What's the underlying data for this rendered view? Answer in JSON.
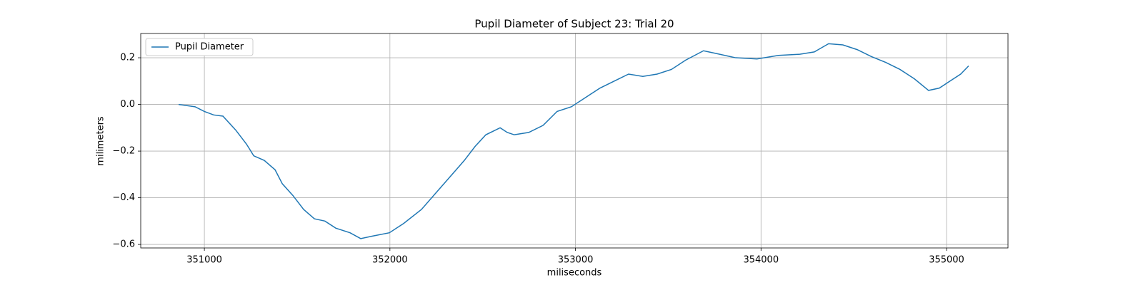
{
  "chart_data": {
    "type": "line",
    "title": "Pupil Diameter of Subject 23: Trial 20",
    "xlabel": "miliseconds",
    "ylabel": "milimeters",
    "x": [
      350861,
      350950,
      351000,
      351050,
      351100,
      351169,
      351227,
      351266,
      351323,
      351381,
      351420,
      351477,
      351535,
      351593,
      351650,
      351708,
      351785,
      351843,
      351901,
      351997,
      352074,
      352170,
      352247,
      352324,
      352401,
      352459,
      352517,
      352594,
      352632,
      352670,
      352748,
      352825,
      352901,
      352978,
      353055,
      353132,
      353209,
      353286,
      353363,
      353440,
      353517,
      353594,
      353690,
      353748,
      353863,
      353978,
      354094,
      354209,
      354287,
      354364,
      354441,
      354518,
      354595,
      354672,
      354749,
      354826,
      354903,
      354961,
      355018,
      355076,
      355119
    ],
    "series": [
      {
        "name": "Pupil Diameter",
        "color": "#1f77b4",
        "values": [
          0.0,
          -0.01,
          -0.03,
          -0.045,
          -0.05,
          -0.11,
          -0.17,
          -0.22,
          -0.24,
          -0.28,
          -0.34,
          -0.39,
          -0.45,
          -0.49,
          -0.5,
          -0.53,
          -0.55,
          -0.575,
          -0.565,
          -0.55,
          -0.51,
          -0.45,
          -0.38,
          -0.31,
          -0.24,
          -0.18,
          -0.13,
          -0.1,
          -0.12,
          -0.13,
          -0.12,
          -0.09,
          -0.03,
          -0.01,
          0.03,
          0.07,
          0.1,
          0.13,
          0.12,
          0.13,
          0.15,
          0.19,
          0.23,
          0.22,
          0.2,
          0.195,
          0.21,
          0.215,
          0.225,
          0.26,
          0.255,
          0.235,
          0.205,
          0.18,
          0.15,
          0.11,
          0.06,
          0.07,
          0.1,
          0.13,
          0.165
        ]
      }
    ],
    "xlim": [
      350657,
      355331
    ],
    "ylim": [
      -0.615,
      0.304
    ],
    "xticks": [
      351000,
      352000,
      353000,
      354000,
      355000
    ],
    "yticks": [
      {
        "value": -0.6,
        "label": "−0.6"
      },
      {
        "value": -0.4,
        "label": "−0.4"
      },
      {
        "value": -0.2,
        "label": "−0.2"
      },
      {
        "value": 0,
        "label": "0.0"
      },
      0.2
    ],
    "grid": true,
    "legend": "upper-left"
  }
}
